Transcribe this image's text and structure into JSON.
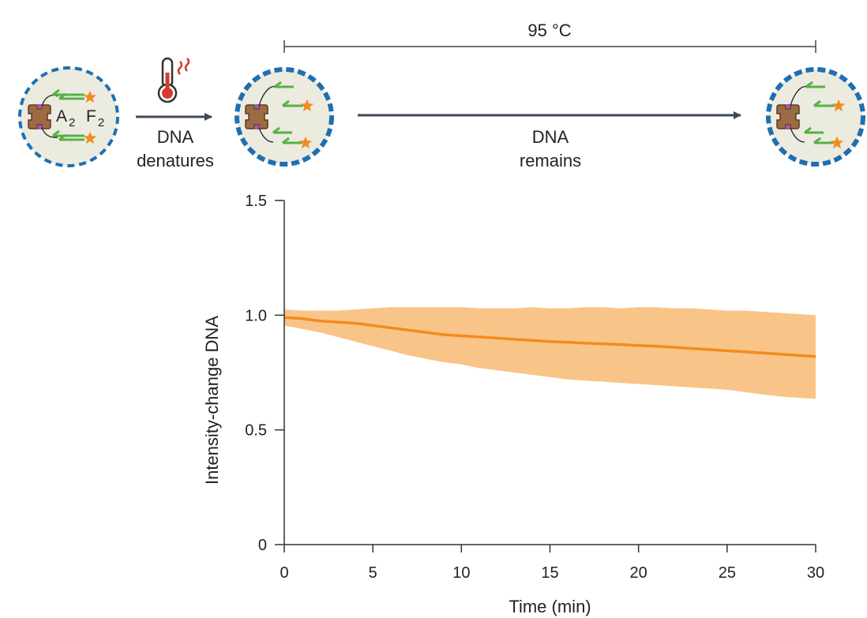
{
  "diagram": {
    "temperature_label": "95 °C",
    "step1_caption": [
      "DNA",
      "denatures"
    ],
    "step2_caption": [
      "DNA",
      "remains"
    ],
    "particle_label_a": "A",
    "particle_label_a_sub": "2",
    "particle_label_f": "F",
    "particle_label_f_sub": "2",
    "colors": {
      "shell": "#1f6fb0",
      "core": "#ecebdf",
      "strand": "#56b148",
      "star": "#f28c1e",
      "protein": "#9c6b43",
      "arrow": "#3e4a56",
      "thermo": "#d63a2a"
    }
  },
  "chart_data": {
    "type": "line",
    "x": [
      0,
      1,
      2,
      3,
      4,
      5,
      6,
      7,
      8,
      9,
      10,
      11,
      12,
      13,
      14,
      15,
      16,
      17,
      18,
      19,
      20,
      21,
      22,
      23,
      24,
      25,
      26,
      27,
      28,
      29,
      30
    ],
    "series": [
      {
        "name": "Intensity-change DNA",
        "values": [
          0.99,
          0.985,
          0.975,
          0.97,
          0.965,
          0.955,
          0.945,
          0.935,
          0.925,
          0.915,
          0.91,
          0.905,
          0.9,
          0.895,
          0.89,
          0.885,
          0.882,
          0.878,
          0.875,
          0.872,
          0.868,
          0.865,
          0.86,
          0.855,
          0.85,
          0.845,
          0.84,
          0.835,
          0.83,
          0.825,
          0.82
        ],
        "lower": [
          0.955,
          0.94,
          0.925,
          0.905,
          0.885,
          0.865,
          0.845,
          0.825,
          0.81,
          0.795,
          0.785,
          0.77,
          0.76,
          0.75,
          0.74,
          0.73,
          0.72,
          0.715,
          0.71,
          0.705,
          0.7,
          0.695,
          0.69,
          0.685,
          0.68,
          0.675,
          0.665,
          0.655,
          0.645,
          0.64,
          0.635
        ],
        "upper": [
          1.025,
          1.02,
          1.02,
          1.02,
          1.025,
          1.03,
          1.035,
          1.035,
          1.035,
          1.035,
          1.035,
          1.03,
          1.03,
          1.03,
          1.035,
          1.03,
          1.03,
          1.035,
          1.035,
          1.03,
          1.035,
          1.035,
          1.03,
          1.03,
          1.025,
          1.02,
          1.02,
          1.015,
          1.01,
          1.005,
          1.0
        ],
        "color": "#f28c1e",
        "band_color": "#f9c488"
      }
    ],
    "title": "",
    "xlabel": "Time (min)",
    "ylabel": "Intensity-change DNA",
    "xlim": [
      0,
      30
    ],
    "ylim": [
      0,
      1.5
    ],
    "xticks": [
      0,
      5,
      10,
      15,
      20,
      25,
      30
    ],
    "xtick_labels": [
      "0",
      "5",
      "10",
      "15",
      "20",
      "25",
      "30"
    ],
    "yticks": [
      0,
      0.5,
      1.0,
      1.5
    ],
    "ytick_labels": [
      "0",
      "0.5",
      "1.0",
      "1.5"
    ],
    "grid": false
  }
}
